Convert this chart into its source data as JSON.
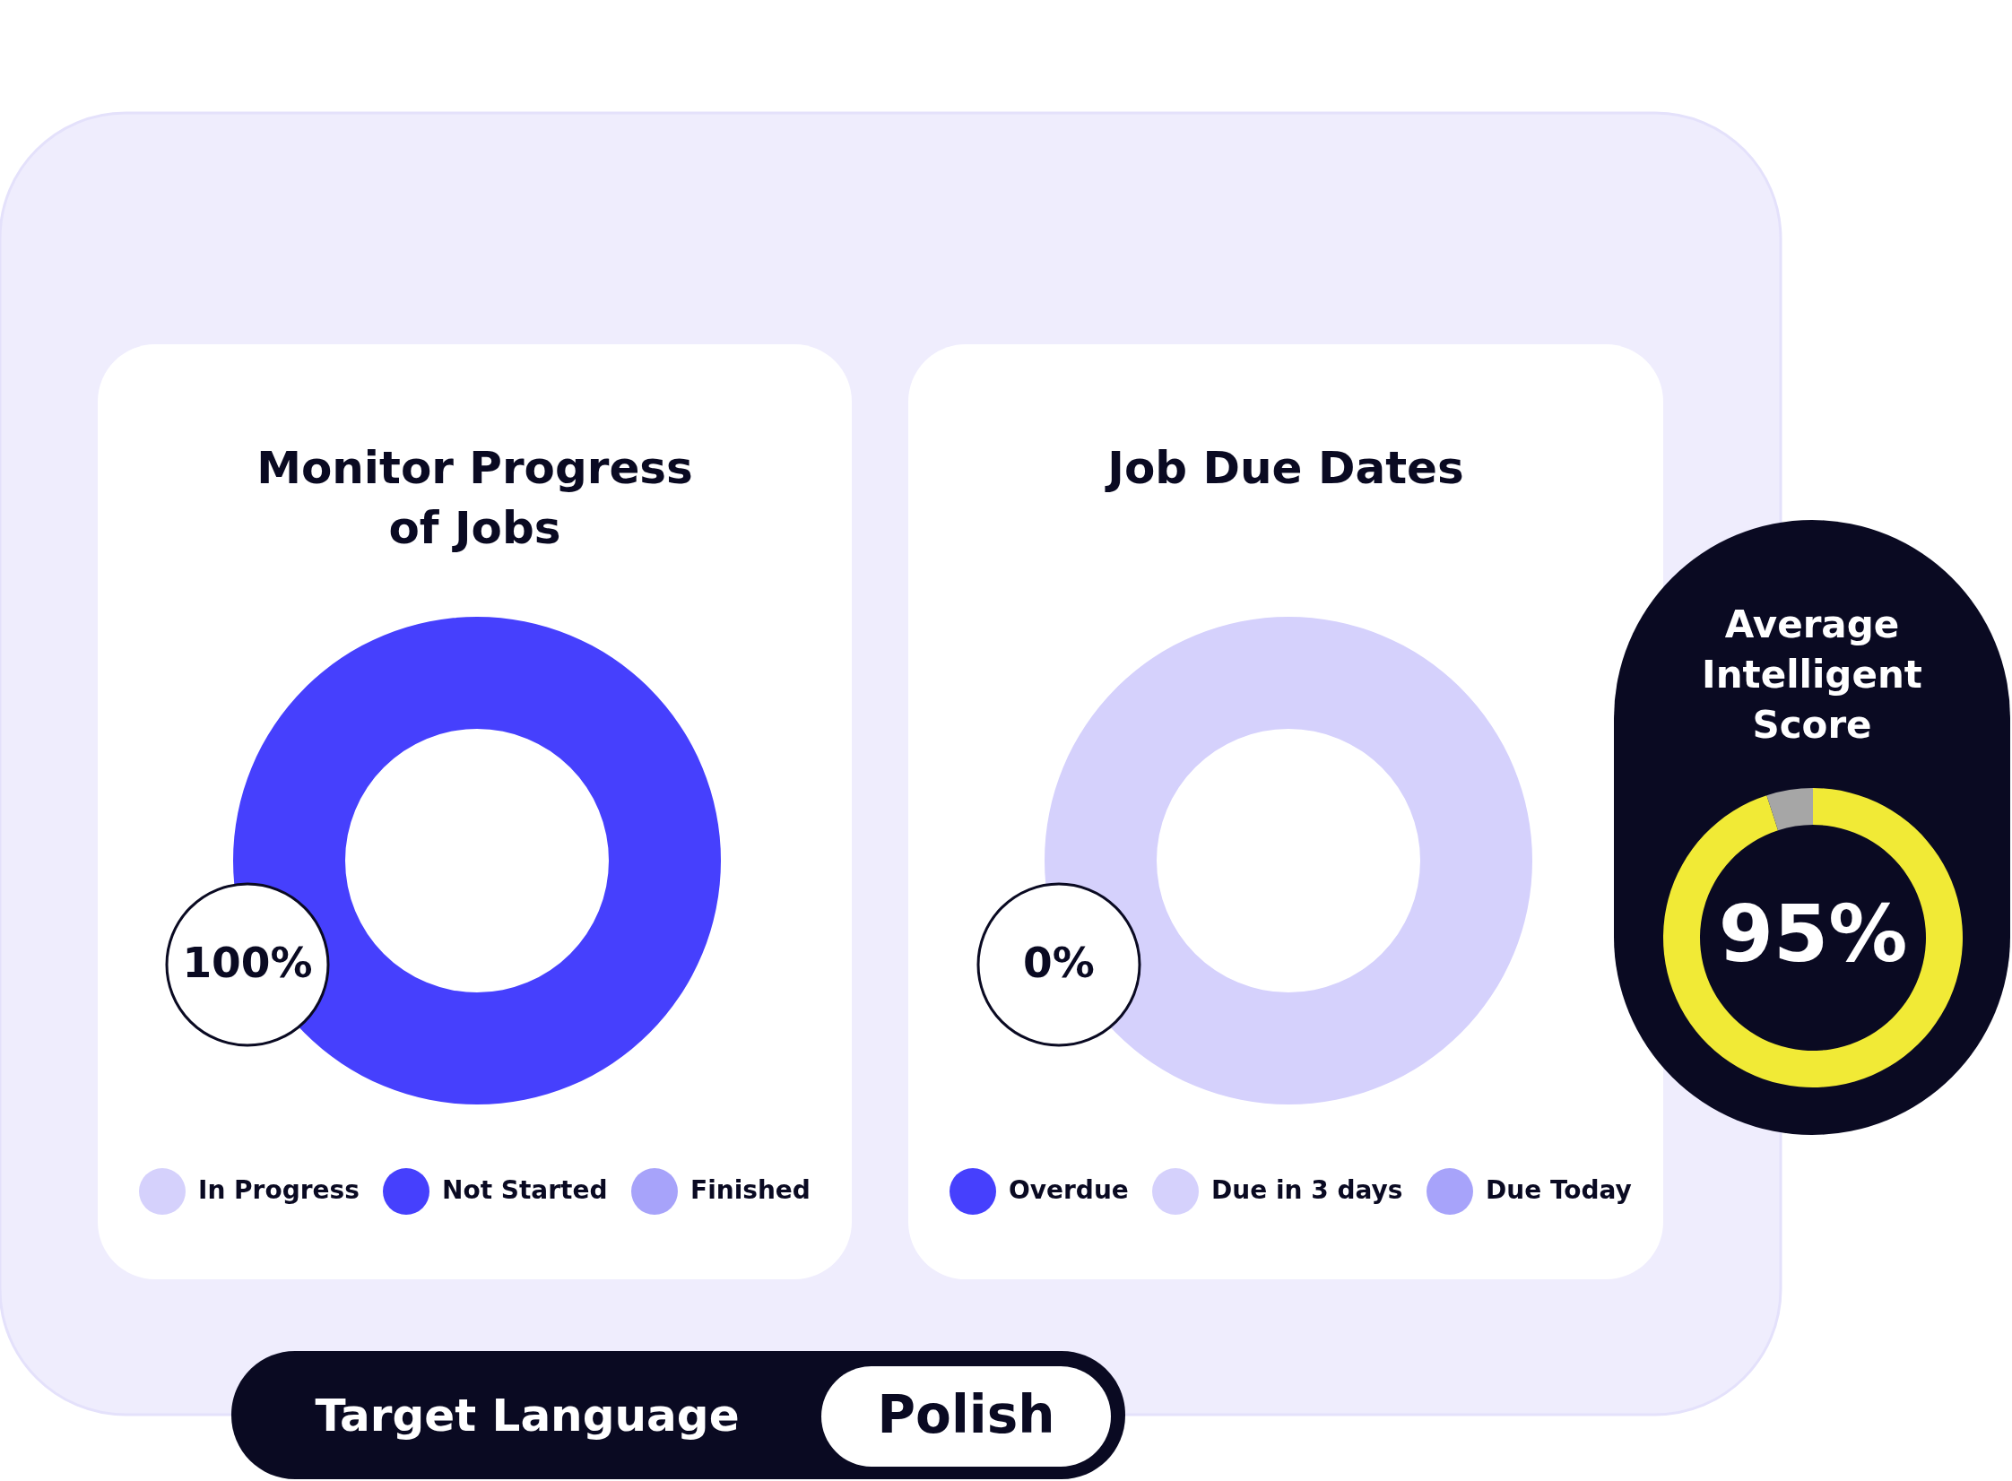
{
  "chart_data": [
    {
      "type": "donut",
      "title": "Monitor Progress of Jobs",
      "categories": [
        "In Progress",
        "Not Started",
        "Finished"
      ],
      "values": [
        0,
        100,
        0
      ],
      "colors": [
        "#d5d1fc",
        "#4640fd",
        "#a7a3fa"
      ],
      "legend": "bottom",
      "annotations": [
        "100%"
      ]
    },
    {
      "type": "donut",
      "title": "Job Due Dates",
      "categories": [
        "Overdue",
        "Due in 3 days",
        "Due Today"
      ],
      "values": [
        0,
        100,
        0
      ],
      "colors": [
        "#4640fd",
        "#d5d1fc",
        "#a7a3fa"
      ],
      "legend": "bottom",
      "annotations": [
        "0%"
      ]
    },
    {
      "type": "donut",
      "title": "Average Intelligent Score",
      "categories": [
        null,
        null
      ],
      "values": [
        95,
        5
      ],
      "colors": [
        "#f1ea36",
        "#a6a6a6"
      ],
      "annotations": [
        "95%"
      ]
    },
    {
      "type": "other",
      "annotations": [
        "Target Language",
        "Polish"
      ]
    }
  ]
}
